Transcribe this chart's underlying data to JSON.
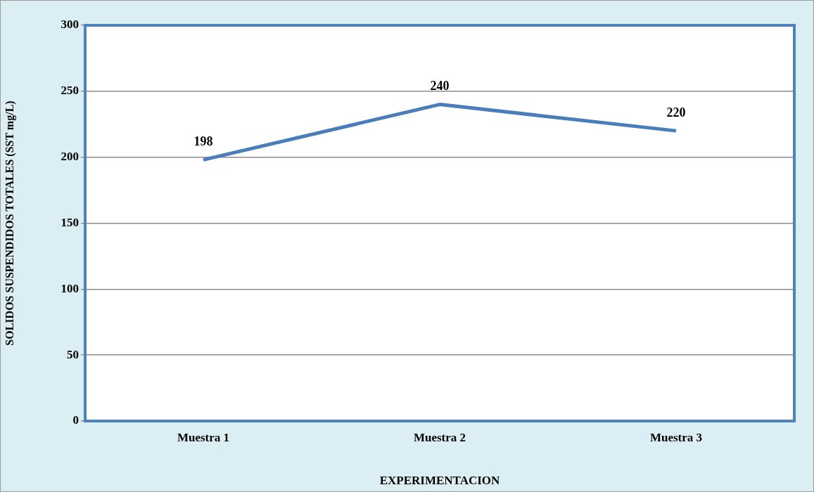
{
  "chart_data": {
    "type": "line",
    "xlabel": "EXPERIMENTACION",
    "ylabel": "SOLIDOS SUSPENDIDOS TOTALES (SST mg/L)",
    "categories": [
      "Muestra 1",
      "Muestra 2",
      "Muestra 3"
    ],
    "values": [
      198,
      240,
      220
    ],
    "color": "#4a7ebb",
    "ylim": [
      0,
      300
    ],
    "yticks": [
      0,
      50,
      100,
      150,
      200,
      250,
      300
    ],
    "grid": "y",
    "data_labels": true,
    "marker": "none",
    "line_style": "solid"
  }
}
